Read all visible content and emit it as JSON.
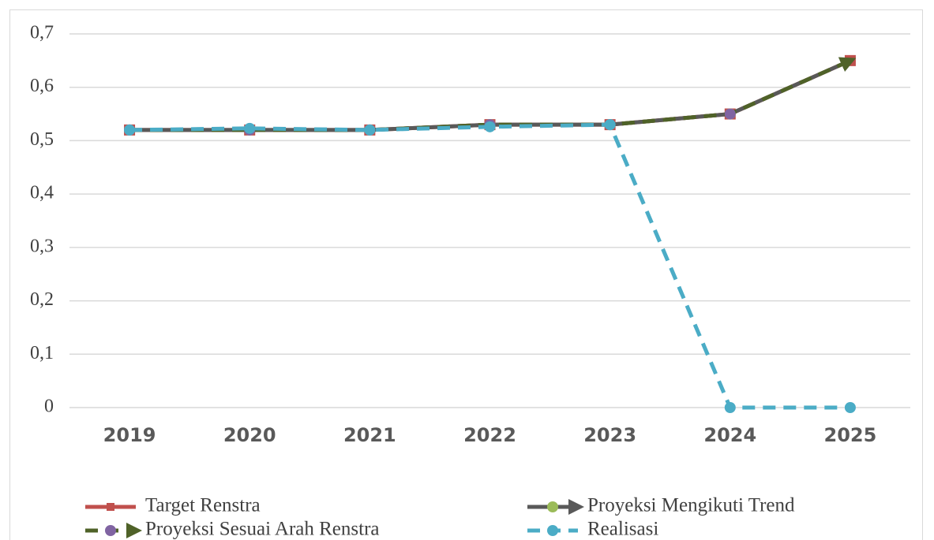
{
  "chart_data": {
    "type": "line",
    "categories": [
      "2019",
      "2020",
      "2021",
      "2022",
      "2023",
      "2024",
      "2025"
    ],
    "series": [
      {
        "name": "Target Renstra",
        "color": "#c0504d",
        "marker": "square",
        "marker_color": "#c0504d",
        "dashed": false,
        "arrow": false,
        "values": [
          0.52,
          0.52,
          0.52,
          0.53,
          0.53,
          0.55,
          0.65
        ]
      },
      {
        "name": "Proyeksi Mengikuti Trend",
        "color": "#595959",
        "marker": "circle",
        "marker_color": "#9bbb59",
        "dashed": false,
        "arrow": true,
        "values": [
          0.52,
          0.52,
          0.52,
          0.53,
          0.53,
          0.55,
          0.65
        ]
      },
      {
        "name": "Proyeksi Sesuai Arah Renstra",
        "color": "#4f6228",
        "marker": "circle",
        "marker_color": "#8064a2",
        "dashed": true,
        "arrow": true,
        "values": [
          0.52,
          0.52,
          0.52,
          0.53,
          0.53,
          0.55,
          0.65
        ]
      },
      {
        "name": "Realisasi",
        "color": "#4bacc6",
        "marker": "circle",
        "marker_color": "#4bacc6",
        "dashed": true,
        "arrow": false,
        "values": [
          0.52,
          0.523,
          0.52,
          0.526,
          0.53,
          0,
          0
        ]
      }
    ],
    "ylim": [
      0,
      0.7
    ],
    "yticks": [
      0,
      {
        "value": 0.1,
        "label": "0,1"
      },
      {
        "value": 0.2,
        "label": "0,2"
      },
      {
        "value": 0.3,
        "label": "0,3"
      },
      {
        "value": 0.4,
        "label": "0,4"
      },
      {
        "value": 0.5,
        "label": "0,5"
      },
      {
        "value": 0.6,
        "label": "0,6"
      },
      {
        "value": 0.7,
        "label": "0,7"
      }
    ],
    "grid": true,
    "legend": "bottom"
  }
}
